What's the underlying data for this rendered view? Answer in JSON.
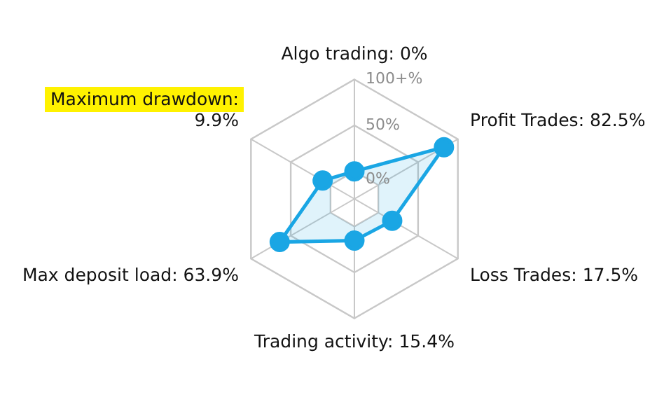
{
  "chart_data": {
    "type": "radar",
    "categories": [
      "Algo trading: 0%",
      "Profit Trades: 82.5%",
      "Loss Trades: 17.5%",
      "Trading activity: 15.4%",
      "Max deposit load: 63.9%",
      "Maximum drawdown: 9.9%"
    ],
    "series": [
      {
        "color": "#1aa6e4",
        "values": [
          0,
          82.5,
          17.5,
          15.4,
          63.9,
          9.9
        ]
      }
    ],
    "ylim": [
      -30,
      100
    ],
    "yticks": [
      {
        "value": 0,
        "label": "0%"
      },
      {
        "value": 50,
        "label": "50%"
      },
      {
        "value": 100,
        "label": "100+%"
      }
    ],
    "grid": true,
    "legend": false,
    "marker": "circle"
  }
}
